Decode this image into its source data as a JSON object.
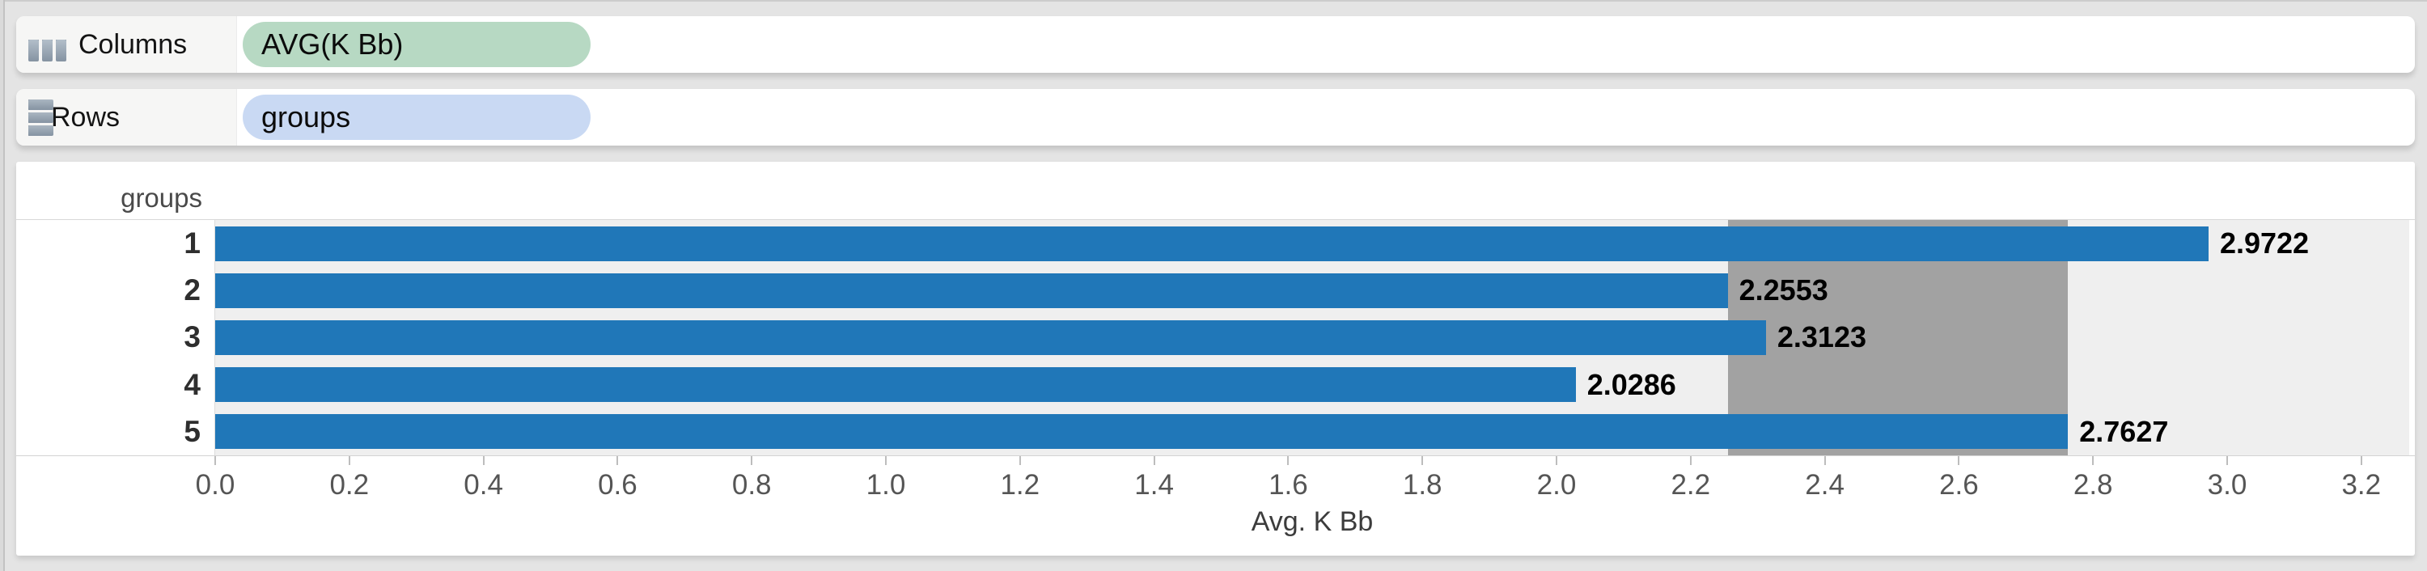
{
  "shelves": {
    "columns": {
      "label": "Columns",
      "pill": "AVG(K Bb)"
    },
    "rows": {
      "label": "Rows",
      "pill": "groups"
    }
  },
  "colors": {
    "measure_pill_green": "#b7d9c3",
    "dimension_pill_blue": "#c9d9f3",
    "bar_blue": "#2077b8",
    "selection_gray": "#a2a2a2",
    "plot_background": "#efefef"
  },
  "chart_data": {
    "type": "bar",
    "orientation": "horizontal",
    "row_header": "groups",
    "categories": [
      "1",
      "2",
      "3",
      "4",
      "5"
    ],
    "values": [
      2.9722,
      2.2553,
      2.3123,
      2.0286,
      2.7627
    ],
    "value_labels": [
      "2.9722",
      "2.2553",
      "2.3123",
      "2.0286",
      "2.7627"
    ],
    "xlabel": "Avg. K Bb",
    "xlim": [
      0,
      3.27
    ],
    "x_tick_labels": [
      "0.0",
      "0.2",
      "0.4",
      "0.6",
      "0.8",
      "1.0",
      "1.2",
      "1.4",
      "1.6",
      "1.8",
      "2.0",
      "2.2",
      "2.4",
      "2.6",
      "2.8",
      "3.0",
      "3.2"
    ],
    "grid": false,
    "legend": "none",
    "selection": {
      "from": 2.2553,
      "to": 2.7627
    }
  }
}
